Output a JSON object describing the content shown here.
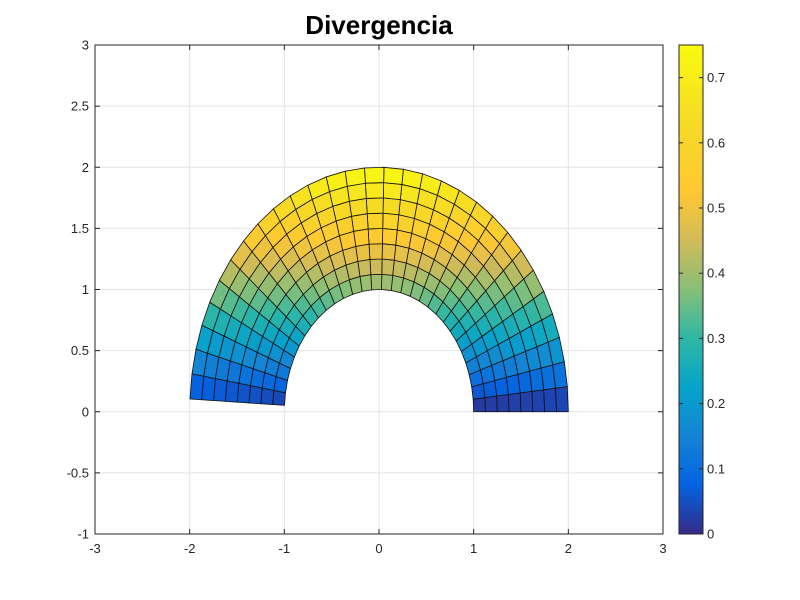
{
  "chart_data": {
    "type": "heatmap",
    "subtype": "surface-on-annulus",
    "title": "Divergencia",
    "xlabel": "",
    "ylabel": "",
    "xlim": [
      -3,
      3
    ],
    "ylim": [
      -1,
      3
    ],
    "grid": true,
    "xticks": [
      -3,
      -2,
      -1,
      0,
      1,
      2,
      3
    ],
    "xtick_labels": [
      "-3",
      "-2",
      "-1",
      "0",
      "1",
      "2",
      "3"
    ],
    "yticks": [
      -1,
      -0.5,
      0,
      0.5,
      1,
      1.5,
      2,
      2.5,
      3
    ],
    "ytick_labels": [
      "-1",
      "-0.5",
      "0",
      "0.5",
      "1",
      "1.5",
      "2",
      "2.5",
      "3"
    ],
    "domain": {
      "shape": "half-annulus",
      "r_min": 1,
      "r_max": 2,
      "theta_min_deg": 0,
      "theta_max_deg": 177,
      "radial_divisions": 8,
      "angular_divisions": 30
    },
    "value_function": "approximately 0.75 * (r/2) * sin(theta)",
    "colorbar": {
      "colormap": "parula",
      "cmin": 0,
      "cmax": 0.75,
      "ticks": [
        0,
        0.1,
        0.2,
        0.3,
        0.4,
        0.5,
        0.6,
        0.7
      ],
      "tick_labels": [
        "0",
        "0.1",
        "0.2",
        "0.3",
        "0.4",
        "0.5",
        "0.6",
        "0.7"
      ],
      "location": "right"
    }
  }
}
